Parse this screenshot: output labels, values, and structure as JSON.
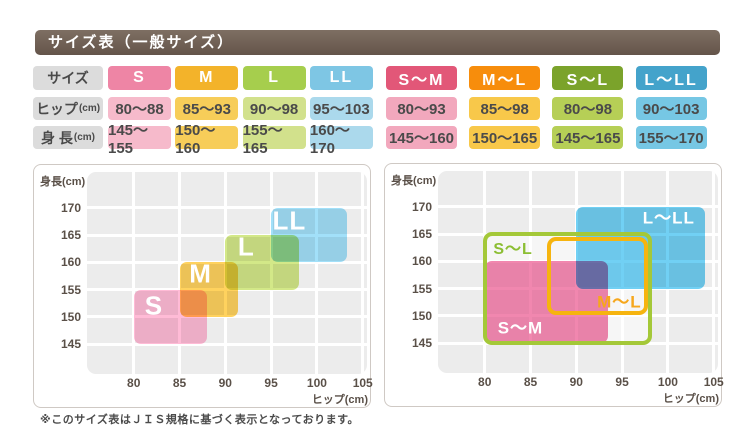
{
  "title": "サイズ表（一般サイズ）",
  "footnote": "※このサイズ表はＪＩＳ規格に基づく表示となっております。",
  "colors": {
    "title_bar": "#6f6054",
    "label_cell_bg": "#dcdcdc",
    "table_text": "#4a4a4a",
    "plot_bg": "#ececec",
    "gridline": "#ffffff",
    "panel_border": "#cfc9c4"
  },
  "size_table": {
    "row_labels": [
      "サイズ",
      "ヒップ(cm)",
      "身 長(cm)"
    ],
    "left_columns": [
      {
        "header": "S",
        "header_color": "#ee85a5",
        "cell_color": "#f6bacb",
        "hip": "80〜88",
        "height": "145〜155"
      },
      {
        "header": "M",
        "header_color": "#f3b32a",
        "cell_color": "#f7cd59",
        "hip": "85〜93",
        "height": "150〜160"
      },
      {
        "header": "L",
        "header_color": "#a6ce4d",
        "cell_color": "#d2e18c",
        "hip": "90〜98",
        "height": "155〜165"
      },
      {
        "header": "LL",
        "header_color": "#7ec6e4",
        "cell_color": "#abd9ec",
        "hip": "95〜103",
        "height": "160〜170"
      }
    ],
    "right_columns": [
      {
        "header": "S〜M",
        "header_color": "#e25778",
        "cell_color": "#f2a8bd",
        "hip": "80〜93",
        "height": "145〜160"
      },
      {
        "header": "M〜L",
        "header_color": "#f78d0c",
        "cell_color": "#f8c84a",
        "hip": "85〜98",
        "height": "150〜165"
      },
      {
        "header": "S〜L",
        "header_color": "#7ba32b",
        "cell_color": "#b6cf56",
        "hip": "80〜98",
        "height": "145〜165"
      },
      {
        "header": "L〜LL",
        "header_color": "#44a3cb",
        "cell_color": "#76c7e4",
        "hip": "90〜103",
        "height": "155〜170"
      }
    ]
  },
  "chart_data": [
    {
      "type": "size-region-chart",
      "title": "single-size chart",
      "xlabel": "ヒップ(cm)",
      "ylabel": "身長(cm)",
      "xticks": [
        80,
        85,
        90,
        95,
        100,
        105
      ],
      "yticks": [
        170,
        165,
        160,
        155,
        150,
        145
      ],
      "xlim": [
        74.9,
        105.5
      ],
      "ylim": [
        139.5,
        176.6
      ],
      "grid": true,
      "regions": [
        {
          "label": "S",
          "style": "fill",
          "hip": [
            80,
            88
          ],
          "height": [
            145,
            155
          ],
          "color": "#ffaccd",
          "label_color": "#ffffff",
          "label_at": [
            82.2,
            152.0
          ],
          "label_size": 26
        },
        {
          "label": "M",
          "style": "fill",
          "hip": [
            85,
            93
          ],
          "hip_drawn": [
            85,
            91.4
          ],
          "height": [
            150,
            160
          ],
          "color": "#ffc83a",
          "label_color": "#ffffff",
          "label_at": [
            87.3,
            157.8
          ],
          "label_size": 26
        },
        {
          "label": "L",
          "style": "fill",
          "hip": [
            90,
            98
          ],
          "height": [
            155,
            165
          ],
          "color": "#c9e36e",
          "label_color": "#ffffff",
          "label_at": [
            92.3,
            162.8
          ],
          "label_size": 26
        },
        {
          "label": "LL",
          "style": "fill",
          "hip": [
            95,
            103
          ],
          "hip_drawn": [
            95,
            103.3
          ],
          "height": [
            160,
            170
          ],
          "color": "#8ed9f8",
          "label_color": "#ffffff",
          "label_at": [
            97.0,
            167.6
          ],
          "label_size": 26
        }
      ]
    },
    {
      "type": "size-region-chart",
      "title": "combined-size chart",
      "xlabel": "ヒップ(cm)",
      "ylabel": "身長(cm)",
      "xticks": [
        80,
        85,
        90,
        95,
        100,
        105
      ],
      "yticks": [
        170,
        165,
        160,
        155,
        150,
        145
      ],
      "xlim": [
        74.9,
        105.5
      ],
      "ylim": [
        139.5,
        176.6
      ],
      "grid": true,
      "regions": [
        {
          "label": "",
          "style": "underlay",
          "hip": [
            80,
            98
          ],
          "height": [
            145,
            165
          ],
          "color": "rgba(255,255,255,0.55)"
        },
        {
          "label": "S〜M",
          "style": "fill",
          "hip": [
            80,
            93
          ],
          "hip_drawn": [
            80,
            93.5
          ],
          "height": [
            145,
            160
          ],
          "color": "#ee6d9d",
          "label_color": "#ffffff",
          "label_at": [
            83.9,
            148.2
          ],
          "label_size": 17
        },
        {
          "label": "L〜LL",
          "style": "fill",
          "hip": [
            90,
            103
          ],
          "hip_drawn": [
            90,
            104
          ],
          "height": [
            155,
            170
          ],
          "color": "#52c6f2",
          "label_color": "#ffffff",
          "label_at": [
            100.1,
            168.3
          ],
          "label_size": 17
        },
        {
          "label": "M〜L",
          "style": "outline",
          "hip": [
            85,
            98
          ],
          "hip_drawn": [
            87,
            97.6
          ],
          "height": [
            150,
            165
          ],
          "height_drawn": [
            150.5,
            164.2
          ],
          "color": "#f6b40f",
          "label_color": "#f6a71c",
          "label_at": [
            94.7,
            152.9
          ],
          "label_size": 17
        },
        {
          "label": "S〜L",
          "style": "outline",
          "hip": [
            80,
            98
          ],
          "height": [
            145,
            165
          ],
          "color": "#a4c838",
          "label_color": "#8cbe33",
          "label_at": [
            83.1,
            162.6
          ],
          "label_size": 16
        }
      ]
    }
  ]
}
